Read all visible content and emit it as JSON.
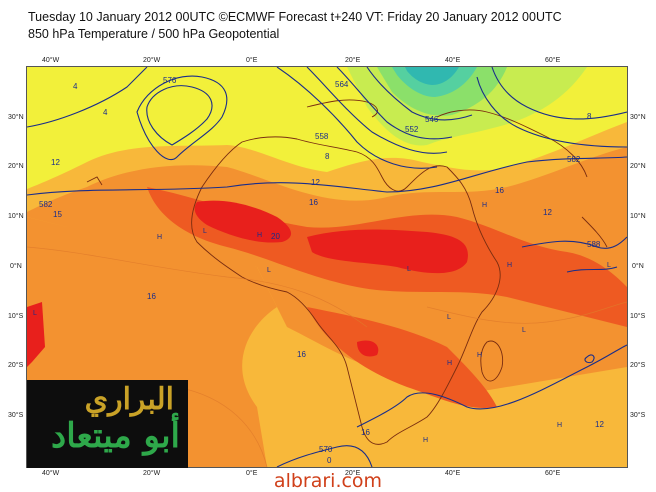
{
  "header": {
    "line1": "Tuesday 10 January 2012 00UTC ©ECMWF Forecast t+240 VT: Friday 20 January 2012 00UTC",
    "line2": "850 hPa Temperature / 500 hPa Geopotential"
  },
  "map": {
    "lon_labels_top": [
      "40°W",
      "20°W",
      "0°E",
      "20°E",
      "40°E",
      "60°E"
    ],
    "lon_labels_bottom": [
      "40°W",
      "20°W",
      "0°E",
      "20°E",
      "40°E",
      "60°E"
    ],
    "lat_labels_left": [
      "30°N",
      "20°N",
      "10°N",
      "0°N",
      "10°S",
      "20°S",
      "30°S"
    ],
    "lat_labels_right": [
      "30°N",
      "20°N",
      "10°N",
      "0°N",
      "10°S",
      "20°S",
      "30°S"
    ],
    "contour_labels": {
      "c576": "576",
      "c582a": "582",
      "c582b": "582",
      "c570": "570",
      "c564": "564",
      "c558": "558",
      "c552": "552",
      "c546": "546",
      "c588": "588",
      "t4a": "4",
      "t4b": "4",
      "t8a": "8",
      "t8b": "8",
      "t12a": "12",
      "t12b": "12",
      "t12c": "12",
      "t12d": "12",
      "t16a": "16",
      "t16b": "16",
      "t16c": "16",
      "t16d": "16",
      "t16e": "16",
      "t20a": "20",
      "t15": "15",
      "t0": "0"
    },
    "pressure_marks": {
      "h1": "H",
      "h2": "H",
      "h3": "H",
      "h4": "H",
      "h5": "H",
      "h6": "H",
      "h7": "H",
      "h8": "H",
      "l1": "L",
      "l2": "L",
      "l3": "L",
      "l4": "L",
      "l5": "L",
      "l6": "L",
      "l7": "L"
    },
    "colors": {
      "cold": "#55d0a0",
      "cool": "#8be06a",
      "mild": "#c8ec50",
      "warm_yellow": "#f2f03a",
      "orange_light": "#f8b83a",
      "orange": "#f39230",
      "red_orange": "#ee5a22",
      "red": "#e8201c",
      "contour": "#1a2d8a"
    }
  },
  "watermark": {
    "line1": "البراري",
    "line2": "أبو ميتعاد"
  },
  "footer": {
    "site": "albrari.com"
  }
}
